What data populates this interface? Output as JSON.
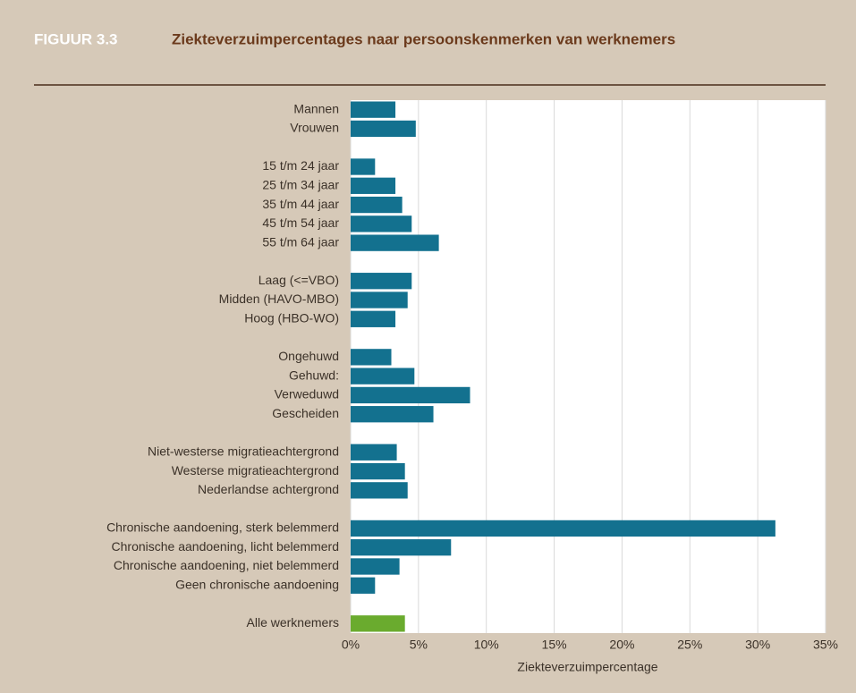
{
  "chart_data": {
    "type": "hbar",
    "figure_label": "FIGUUR 3.3",
    "title": "Ziekteverzuimpercentages naar persoonskenmerken van werknemers",
    "x_label": "Ziekteverzuimpercentage",
    "categories": [
      "Mannen",
      "Vrouwen",
      null,
      "15 t/m 24 jaar",
      "25 t/m 34 jaar",
      "35 t/m 44 jaar",
      "45 t/m 54 jaar",
      "55 t/m 64 jaar",
      null,
      "Laag (<=VBO)",
      "Midden (HAVO-MBO)",
      "Hoog (HBO-WO)",
      null,
      "Ongehuwd",
      "Gehuwd:",
      "Verweduwd",
      "Gescheiden",
      null,
      "Niet-westerse migratieachtergrond",
      "Westerse migratieachtergrond",
      "Nederlandse achtergrond",
      null,
      "Chronische aandoening, sterk belemmerd",
      "Chronische aandoening, licht belemmerd",
      "Chronische aandoening, niet belemmerd",
      "Geen chronische aandoening",
      null,
      "Alle werknemers"
    ],
    "values": [
      3.3,
      4.8,
      null,
      1.8,
      3.3,
      3.8,
      4.5,
      6.5,
      null,
      4.5,
      4.2,
      3.3,
      null,
      3.0,
      4.7,
      8.8,
      6.1,
      null,
      3.4,
      4.0,
      4.2,
      null,
      31.3,
      7.4,
      3.6,
      1.8,
      null,
      4.0
    ],
    "colors": [
      "#13718f",
      "#13718f",
      null,
      "#13718f",
      "#13718f",
      "#13718f",
      "#13718f",
      "#13718f",
      null,
      "#13718f",
      "#13718f",
      "#13718f",
      null,
      "#13718f",
      "#13718f",
      "#13718f",
      "#13718f",
      null,
      "#13718f",
      "#13718f",
      "#13718f",
      null,
      "#13718f",
      "#13718f",
      "#13718f",
      "#13718f",
      null,
      "#6aab2e"
    ],
    "xlim": [
      0,
      35
    ],
    "xticks": [
      {
        "value": 0,
        "label": "0%"
      },
      {
        "value": 5,
        "label": "5%"
      },
      {
        "value": 10,
        "label": "10%"
      },
      {
        "value": 15,
        "label": "15%"
      },
      {
        "value": 20,
        "label": "20%"
      },
      {
        "value": 25,
        "label": "25%"
      },
      {
        "value": 30,
        "label": "30%"
      },
      {
        "value": 35,
        "label": "35%"
      }
    ],
    "grid": true
  }
}
